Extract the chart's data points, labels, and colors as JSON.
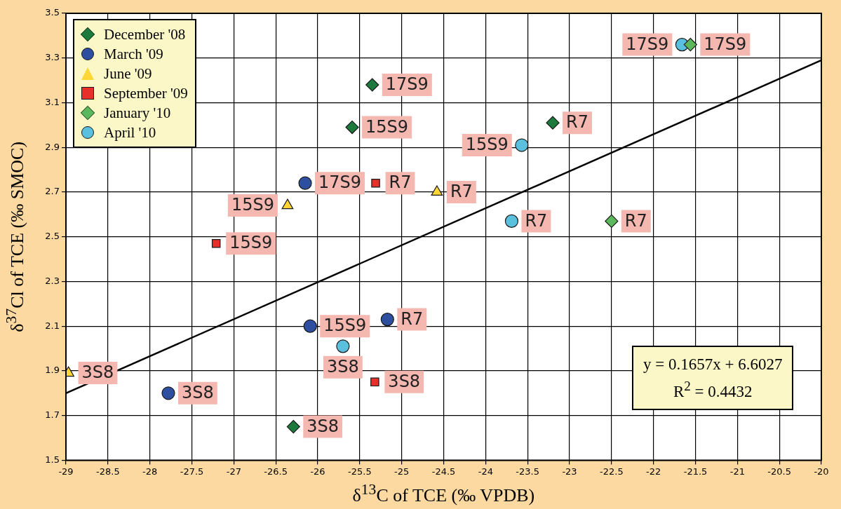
{
  "chart_data": {
    "type": "scatter",
    "xlabel": "δ$^{13}$C of TCE (‰ VPDB)",
    "ylabel": "δ$^{37}$Cl of TCE (‰ SMOC)",
    "xlim": [
      -29,
      -20
    ],
    "xticks": [
      -29,
      -28.5,
      -28,
      -27.5,
      -27,
      -26.5,
      -26,
      -25.5,
      -25,
      -24.5,
      -24,
      -23.5,
      -23,
      -22.5,
      -22,
      -21.5,
      -21,
      -20.5,
      -20
    ],
    "ylim": [
      1.5,
      3.5
    ],
    "yticks": [
      1.5,
      1.7,
      1.9,
      2.1,
      2.3,
      2.5,
      2.7,
      2.9,
      3.1,
      3.3,
      3.5
    ],
    "grid": true,
    "legend": "top left",
    "series": [
      {
        "name": "December '08",
        "color": "#1b7a3c",
        "marker": "diamond",
        "x": [
          -25.35,
          -25.59,
          -23.2,
          -26.29
        ],
        "values": [
          3.18,
          2.99,
          3.01,
          1.65
        ]
      },
      {
        "name": "March '09",
        "color": "#2e4fa0",
        "marker": "circle",
        "x": [
          -26.15,
          -25.17,
          -26.09,
          -27.78
        ],
        "values": [
          2.74,
          2.13,
          2.1,
          1.8
        ]
      },
      {
        "name": "June '09",
        "color": "#ffd633",
        "marker": "triangle",
        "x": [
          -26.36,
          -24.58,
          -28.97
        ],
        "values": [
          2.64,
          2.7,
          1.89
        ]
      },
      {
        "name": "September '09",
        "color": "#e8302a",
        "marker": "square",
        "x": [
          -27.21,
          -25.31,
          -25.32
        ],
        "values": [
          2.47,
          2.74,
          1.85
        ]
      },
      {
        "name": "January '10",
        "color": "#5cb85c",
        "marker": "diamond",
        "x": [
          -21.56,
          -22.5
        ],
        "values": [
          3.36,
          2.57
        ]
      },
      {
        "name": "April '10",
        "color": "#5bc0de",
        "marker": "circle",
        "x": [
          -21.66,
          -23.57,
          -23.69,
          -25.7
        ],
        "values": [
          3.36,
          2.91,
          2.57,
          2.01
        ]
      },
      {
        "type": "line",
        "color": "#000000",
        "marker": "none",
        "x": [
          -29,
          -20
        ],
        "values": [
          1.8,
          3.29
        ]
      }
    ],
    "annotations": [
      {
        "text": "17S9",
        "x": -25.35,
        "y": 3.18
      },
      {
        "text": "15S9",
        "x": -25.59,
        "y": 2.99
      },
      {
        "text": "R7",
        "x": -23.2,
        "y": 3.01
      },
      {
        "text": "3S8",
        "x": -26.29,
        "y": 1.65
      },
      {
        "text": "17S9",
        "x": -26.15,
        "y": 2.74
      },
      {
        "text": "R7",
        "x": -25.17,
        "y": 2.13
      },
      {
        "text": "15S9",
        "x": -26.09,
        "y": 2.1
      },
      {
        "text": "3S8",
        "x": -27.78,
        "y": 1.8
      },
      {
        "text": "15S9",
        "x": -26.36,
        "y": 2.64
      },
      {
        "text": "R7",
        "x": -24.58,
        "y": 2.7
      },
      {
        "text": "3S8",
        "x": -28.97,
        "y": 1.89
      },
      {
        "text": "15S9",
        "x": -27.21,
        "y": 2.47
      },
      {
        "text": "R7",
        "x": -25.31,
        "y": 2.74
      },
      {
        "text": "3S8",
        "x": -25.32,
        "y": 1.85
      },
      {
        "text": "17S9",
        "x": -21.56,
        "y": 3.36
      },
      {
        "text": "R7",
        "x": -22.5,
        "y": 2.57
      },
      {
        "text": "17S9",
        "x": -21.66,
        "y": 3.36
      },
      {
        "text": "15S9",
        "x": -23.57,
        "y": 2.91
      },
      {
        "text": "R7",
        "x": -23.69,
        "y": 2.57
      },
      {
        "text": "3S8",
        "x": -25.7,
        "y": 2.01
      },
      "y = 0.1657x + 6.6027",
      "R$^{2}$ = 0.4432"
    ]
  }
}
